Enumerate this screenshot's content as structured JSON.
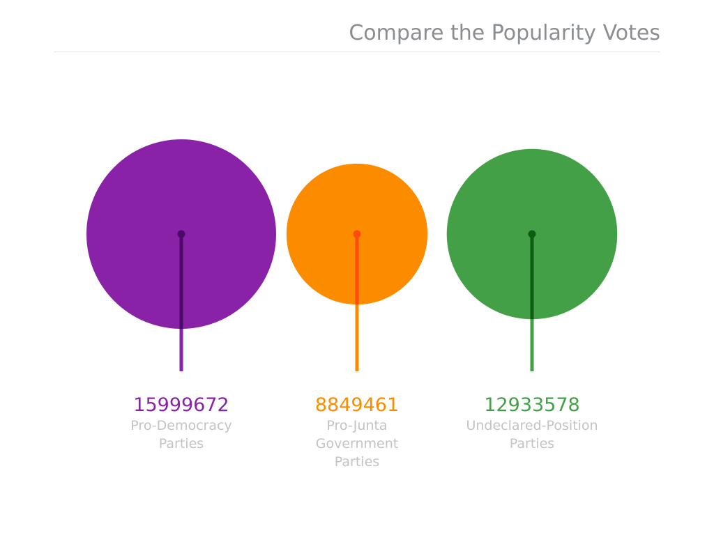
{
  "chart_data": {
    "type": "bubble",
    "title": "Compare the Popularity Votes",
    "series": [
      {
        "name_lines": [
          "Pro-Democracy",
          "Parties"
        ],
        "value": 15999672,
        "value_label": "15999672",
        "color": "#8a22a8",
        "stem_color": "#8a22a8",
        "center_color": "#4b0a66"
      },
      {
        "name_lines": [
          "Pro-Junta",
          "Government",
          "Parties"
        ],
        "value": 8849461,
        "value_label": "8849461",
        "color": "#fb8c00",
        "stem_color": "#fb8c00",
        "center_color": "#ff4a12"
      },
      {
        "name_lines": [
          "Undeclared-Position",
          "Parties"
        ],
        "value": 12933578,
        "value_label": "12933578",
        "color": "#43a047",
        "stem_color": "#43a047",
        "center_color": "#0c5f12"
      }
    ],
    "label_color": "#c3c3c3",
    "grid": false,
    "legend": "none"
  }
}
